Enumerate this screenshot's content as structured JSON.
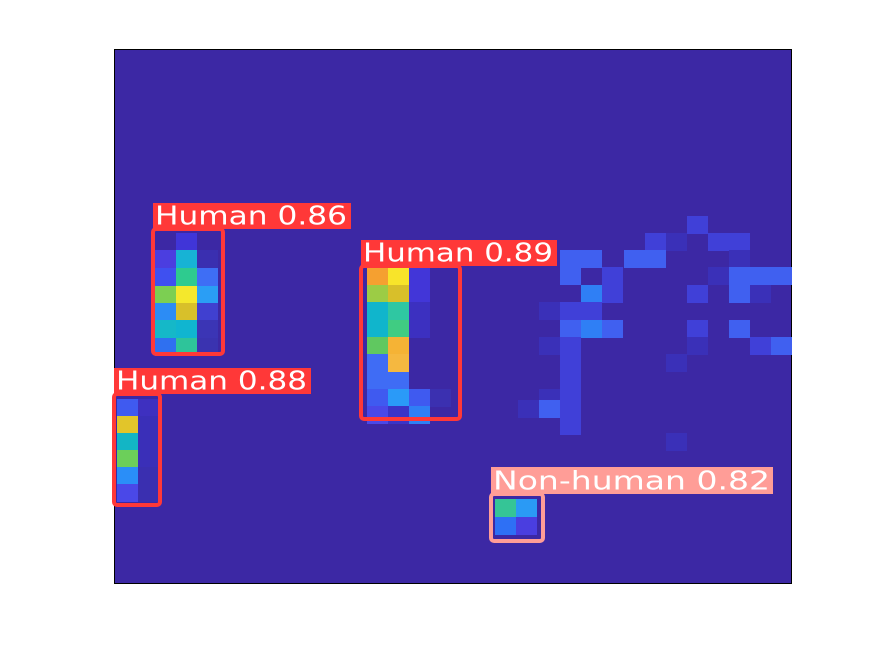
{
  "detections": [
    {
      "label": "Human 0.86"
    },
    {
      "label": "Human 0.89"
    },
    {
      "label": "Human 0.88"
    },
    {
      "label": "Non-human 0.82"
    }
  ]
}
